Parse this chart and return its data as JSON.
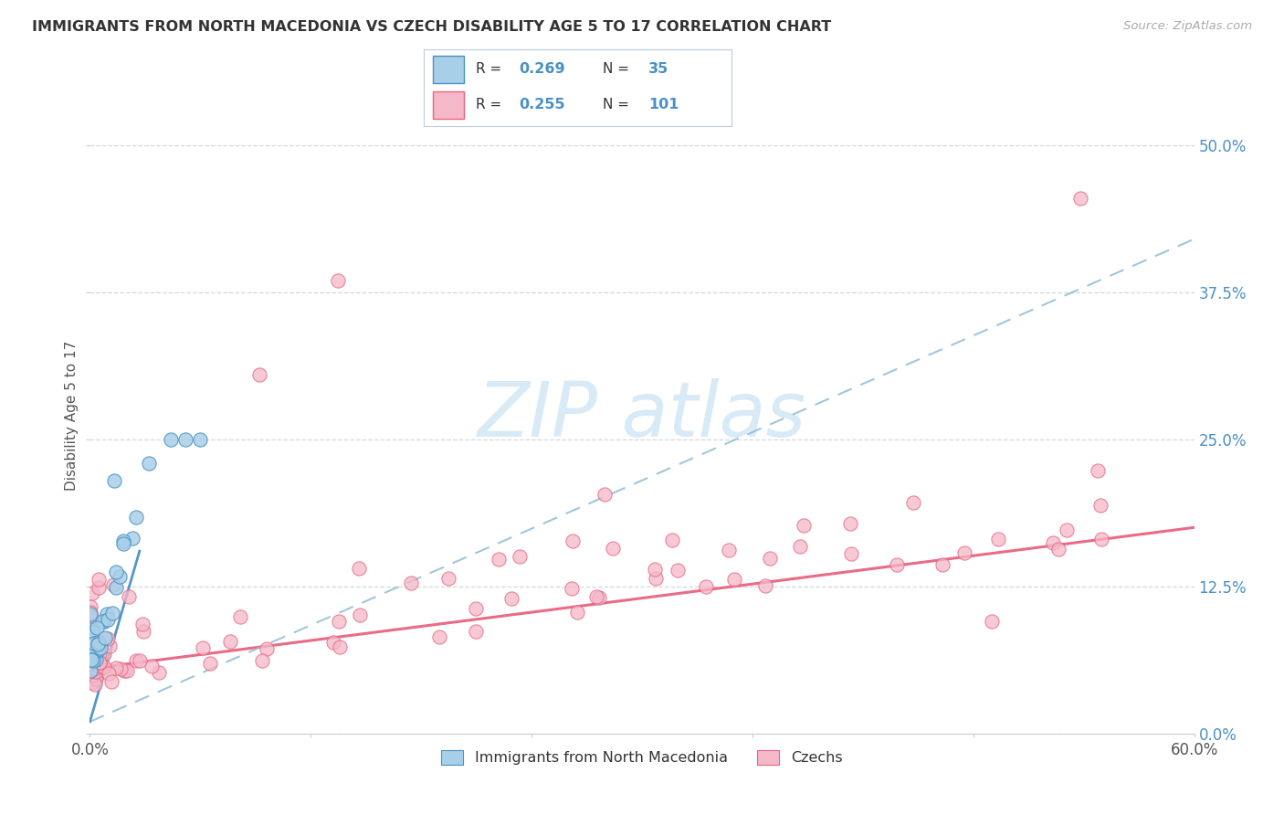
{
  "title": "IMMIGRANTS FROM NORTH MACEDONIA VS CZECH DISABILITY AGE 5 TO 17 CORRELATION CHART",
  "source": "Source: ZipAtlas.com",
  "ylabel": "Disability Age 5 to 17",
  "xlim": [
    0.0,
    0.6
  ],
  "ylim": [
    0.0,
    0.54
  ],
  "ytick_labels": [
    "0.0%",
    "12.5%",
    "25.0%",
    "37.5%",
    "50.0%"
  ],
  "yticks": [
    0.0,
    0.125,
    0.25,
    0.375,
    0.5
  ],
  "color_blue": "#a8cfe8",
  "color_pink": "#f4b8c8",
  "color_blue_dark": "#4a90c4",
  "color_pink_dark": "#e8637e",
  "color_blue_line_dash": "#90bcd8",
  "background_color": "#ffffff",
  "grid_color": "#d0d8e0",
  "watermark_color": "#d8eaf5",
  "title_color": "#333333",
  "source_color": "#aaaaaa",
  "axis_color": "#4a90c4"
}
